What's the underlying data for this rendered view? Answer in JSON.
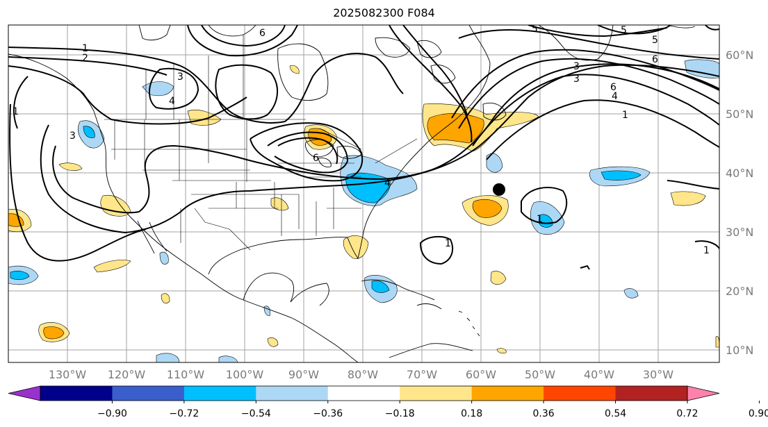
{
  "title": "2025082300 F084",
  "map": {
    "lon_labels": [
      "130°W",
      "120°W",
      "110°W",
      "100°W",
      "90°W",
      "80°W",
      "70°W",
      "60°W",
      "50°W",
      "40°W",
      "30°W"
    ],
    "lat_labels": [
      "60°N",
      "50°N",
      "40°N",
      "30°N",
      "20°N",
      "10°N"
    ],
    "contour_labels": [
      "1",
      "2",
      "3",
      "4",
      "5",
      "6"
    ]
  },
  "colorbar": {
    "ticks": [
      "−0.90",
      "−0.72",
      "−0.54",
      "−0.36",
      "−0.18",
      "0.18",
      "0.36",
      "0.54",
      "0.72",
      "0.90"
    ],
    "colors": [
      "#9932cc",
      "#00008b",
      "#3a5fcd",
      "#00bfff",
      "#add8f5",
      "#ffffff",
      "#ffe68a",
      "#ffa500",
      "#ff4500",
      "#b22222",
      "#ff82ab"
    ]
  },
  "colors": {
    "pos_weak": "#ffe68a",
    "pos_mid": "#ffa500",
    "neg_weak": "#add8f5",
    "neg_mid": "#00bfff"
  }
}
